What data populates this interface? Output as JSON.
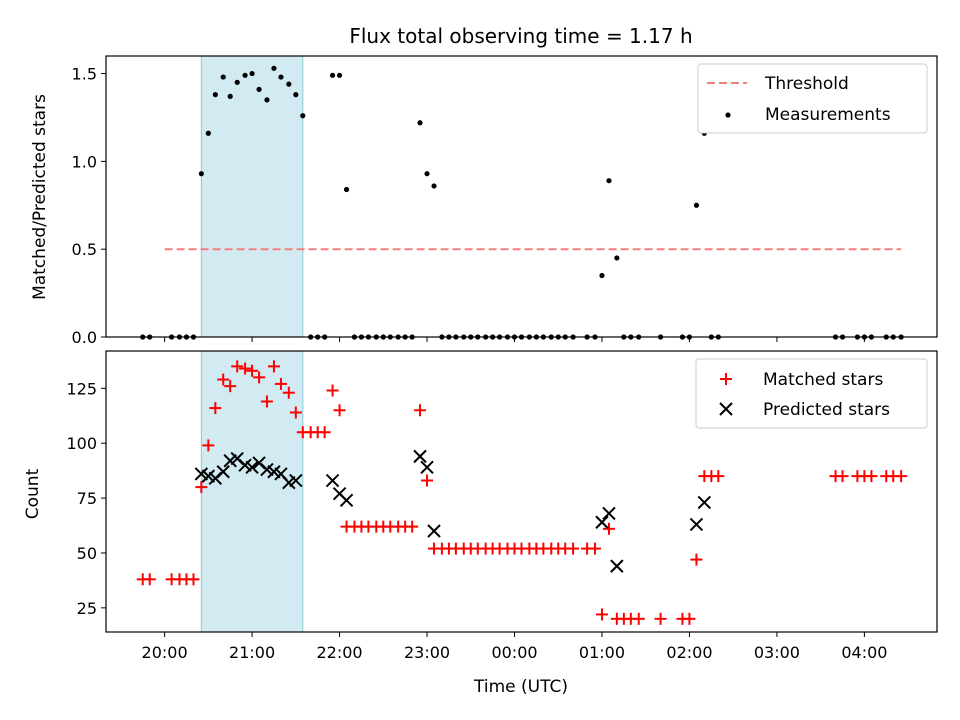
{
  "chart_data": [
    {
      "type": "scatter",
      "title": "Flux total observing time = 1.17 h",
      "xlabel": "",
      "ylabel": "Matched/Predicted stars",
      "ylim": [
        0,
        1.6
      ],
      "yticks": [
        0.0,
        0.5,
        1.0,
        1.5
      ],
      "ytick_labels": [
        "0.0",
        "0.5",
        "1.0",
        "1.5"
      ],
      "x_unit": "hours after 00:00 UTC (negative = previous day)",
      "xlim": [
        -4.67,
        4.83
      ],
      "xticks": [
        -4,
        -3,
        -2,
        -1,
        0,
        1,
        2,
        3,
        4
      ],
      "highlight_band": {
        "start": "20:25",
        "end": "21:35",
        "x": [
          -3.58,
          -2.42
        ],
        "color": "#add8e6"
      },
      "legend": {
        "position": "top-right",
        "entries": [
          "Threshold",
          "Measurements"
        ]
      },
      "threshold": {
        "name": "Threshold",
        "value": 0.5,
        "x": [
          -4.0,
          4.42
        ],
        "color": "#f08080",
        "style": "dashed"
      },
      "series": [
        {
          "name": "Measurements",
          "color": "#000000",
          "x": [
            -4.25,
            -4.17,
            -3.92,
            -3.83,
            -3.75,
            -3.67,
            -3.58,
            -3.5,
            -3.42,
            -3.33,
            -3.25,
            -3.17,
            -3.08,
            -3.0,
            -2.92,
            -2.83,
            -2.75,
            -2.67,
            -2.58,
            -2.5,
            -2.42,
            -2.33,
            -2.25,
            -2.17,
            -2.08,
            -2.0,
            -1.92,
            -1.83,
            -1.75,
            -1.67,
            -1.58,
            -1.5,
            -1.42,
            -1.33,
            -1.25,
            -1.17,
            -1.08,
            -1.0,
            -0.92,
            -0.83,
            -0.75,
            -0.67,
            -0.58,
            -0.5,
            -0.42,
            -0.33,
            -0.25,
            -0.17,
            -0.08,
            0.0,
            0.08,
            0.17,
            0.25,
            0.33,
            0.42,
            0.5,
            0.58,
            0.67,
            0.83,
            0.92,
            1.0,
            1.08,
            1.17,
            1.25,
            1.33,
            1.42,
            1.67,
            1.92,
            2.0,
            2.08,
            2.17,
            2.25,
            2.33,
            3.67,
            3.75,
            3.92,
            4.0,
            4.08,
            4.25,
            4.33,
            4.42
          ],
          "y": [
            0,
            0,
            0,
            0,
            0,
            0,
            0.93,
            1.16,
            1.38,
            1.48,
            1.37,
            1.45,
            1.49,
            1.5,
            1.41,
            1.35,
            1.53,
            1.48,
            1.44,
            1.38,
            1.26,
            0,
            0,
            0,
            1.49,
            1.49,
            0.84,
            0,
            0,
            0,
            0,
            0,
            0,
            0,
            0,
            0,
            1.22,
            0.93,
            0.86,
            0,
            0,
            0,
            0,
            0,
            0,
            0,
            0,
            0,
            0,
            0,
            0,
            0,
            0,
            0,
            0,
            0,
            0,
            0,
            0,
            0,
            0.35,
            0.89,
            0.45,
            0,
            0,
            0,
            0,
            0,
            0,
            0.75,
            1.16,
            0,
            0,
            0,
            0,
            0,
            0,
            0,
            0,
            0,
            0
          ]
        }
      ]
    },
    {
      "type": "scatter",
      "xlabel": "Time (UTC)",
      "ylabel": "Count",
      "ylim": [
        14,
        142
      ],
      "yticks": [
        25,
        50,
        75,
        100,
        125
      ],
      "ytick_labels": [
        "25",
        "50",
        "75",
        "100",
        "125"
      ],
      "x_unit": "hours after 00:00 UTC (negative = previous day)",
      "xlim": [
        -4.67,
        4.83
      ],
      "xticks": [
        -4,
        -3,
        -2,
        -1,
        0,
        1,
        2,
        3,
        4
      ],
      "xtick_labels": [
        "20:00",
        "21:00",
        "22:00",
        "23:00",
        "00:00",
        "01:00",
        "02:00",
        "03:00",
        "04:00"
      ],
      "highlight_band": {
        "start": "20:25",
        "end": "21:35",
        "x": [
          -3.58,
          -2.42
        ],
        "color": "#add8e6"
      },
      "legend": {
        "position": "top-right",
        "entries": [
          "Matched stars",
          "Predicted stars"
        ]
      },
      "series": [
        {
          "name": "Matched stars",
          "marker": "+",
          "color": "#ff0000",
          "x": [
            -4.25,
            -4.17,
            -3.92,
            -3.83,
            -3.75,
            -3.67,
            -3.58,
            -3.5,
            -3.42,
            -3.33,
            -3.25,
            -3.17,
            -3.08,
            -3.0,
            -2.92,
            -2.83,
            -2.75,
            -2.67,
            -2.58,
            -2.5,
            -2.42,
            -2.33,
            -2.25,
            -2.17,
            -2.08,
            -2.0,
            -1.92,
            -1.83,
            -1.75,
            -1.67,
            -1.58,
            -1.5,
            -1.42,
            -1.33,
            -1.25,
            -1.17,
            -1.08,
            -1.0,
            -0.92,
            -0.83,
            -0.75,
            -0.67,
            -0.58,
            -0.5,
            -0.42,
            -0.33,
            -0.25,
            -0.17,
            -0.08,
            0.0,
            0.08,
            0.17,
            0.25,
            0.33,
            0.42,
            0.5,
            0.58,
            0.67,
            0.83,
            0.92,
            1.0,
            1.08,
            1.17,
            1.25,
            1.33,
            1.42,
            1.67,
            1.92,
            2.0,
            2.08,
            2.17,
            2.25,
            2.33,
            3.67,
            3.75,
            3.92,
            4.0,
            4.08,
            4.25,
            4.33,
            4.42
          ],
          "y": [
            38,
            38,
            38,
            38,
            38,
            38,
            80,
            99,
            116,
            129,
            126,
            135,
            134,
            133,
            130,
            119,
            135,
            127,
            123,
            114,
            105,
            105,
            105,
            105,
            124,
            115,
            62,
            62,
            62,
            62,
            62,
            62,
            62,
            62,
            62,
            62,
            115,
            83,
            52,
            52,
            52,
            52,
            52,
            52,
            52,
            52,
            52,
            52,
            52,
            52,
            52,
            52,
            52,
            52,
            52,
            52,
            52,
            52,
            52,
            52,
            22,
            61,
            20,
            20,
            20,
            20,
            20,
            20,
            20,
            47,
            85,
            85,
            85,
            85,
            85,
            85,
            85,
            85,
            85,
            85,
            85
          ]
        },
        {
          "name": "Predicted stars",
          "marker": "x",
          "color": "#000000",
          "x": [
            -3.58,
            -3.5,
            -3.42,
            -3.33,
            -3.25,
            -3.17,
            -3.08,
            -3.0,
            -2.92,
            -2.83,
            -2.75,
            -2.67,
            -2.58,
            -2.5,
            -2.08,
            -2.0,
            -1.92,
            -1.08,
            -1.0,
            -0.92,
            1.0,
            1.08,
            1.17,
            2.08,
            2.17
          ],
          "y": [
            86,
            85,
            84,
            87,
            92,
            93,
            90,
            89,
            91,
            88,
            87,
            86,
            82,
            83,
            83,
            77,
            74,
            94,
            89,
            60,
            64,
            68,
            44,
            63,
            73
          ]
        }
      ]
    }
  ]
}
